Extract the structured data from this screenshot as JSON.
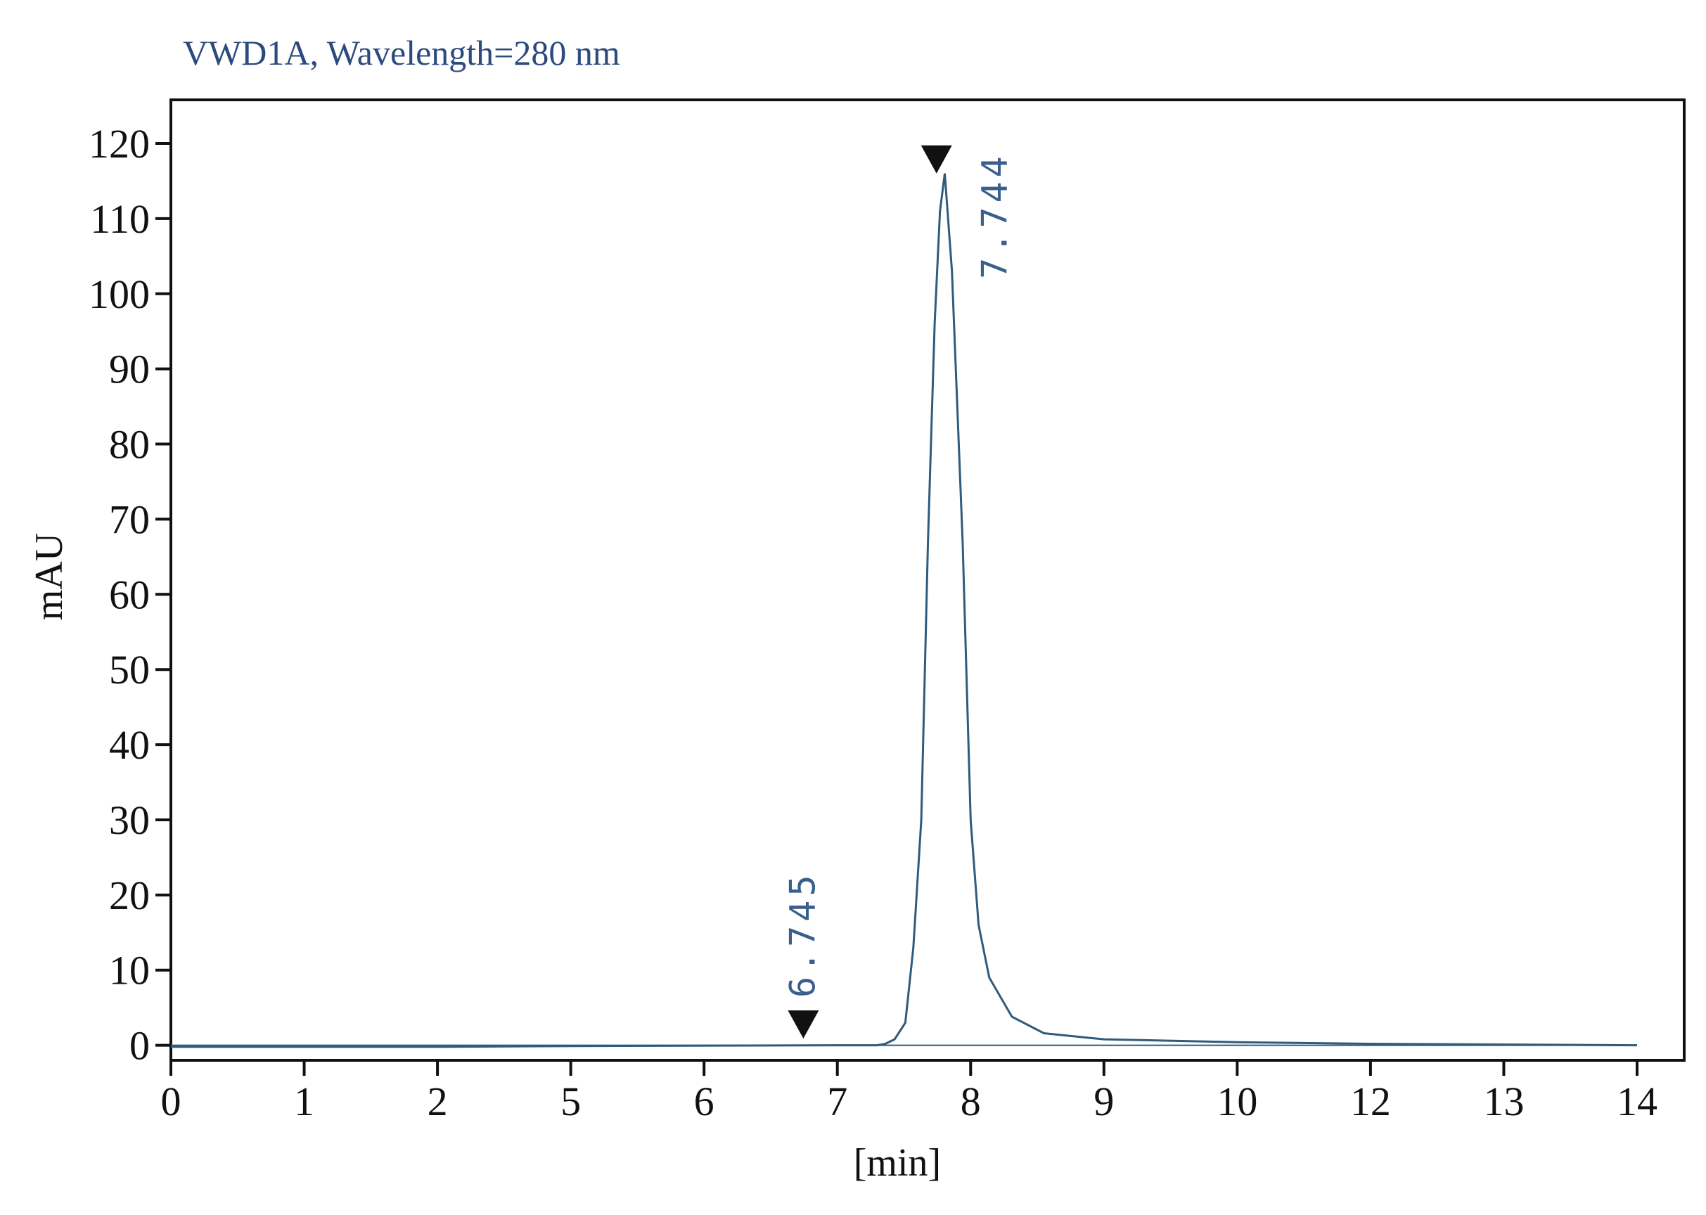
{
  "chart_data": {
    "type": "line",
    "title": "VWD1A, Wavelength=280 nm",
    "x_label": "[min]",
    "y_label": "mAU",
    "x": [
      0,
      2,
      5,
      7,
      7.3,
      7.36,
      7.43,
      7.51,
      7.57,
      7.63,
      7.68,
      7.73,
      7.77,
      7.806,
      7.86,
      7.94,
      8.0,
      8.06,
      8.14,
      8.31,
      8.55,
      8.88,
      9,
      10,
      12,
      14
    ],
    "series": [
      {
        "name": "VWD1A",
        "color": "#2f5b7c",
        "values": [
          -0.2,
          -0.2,
          -0.1,
          0,
          0,
          0.2,
          0.8,
          3,
          13,
          30,
          67,
          96,
          111,
          116,
          103,
          67,
          30,
          16,
          9,
          3.8,
          1.6,
          1,
          0.8,
          0.4,
          0.2,
          0
        ]
      }
    ],
    "annotations": [
      {
        "x": 6.745,
        "y": 0.9
      },
      {
        "x": 7.744,
        "y": 116
      }
    ],
    "xlim": [
      0,
      14.55
    ],
    "xticks": [
      0,
      1,
      2,
      5,
      6,
      7,
      8,
      9,
      10,
      12,
      13,
      14
    ],
    "ylim": [
      -2,
      125.8
    ],
    "yticks": [
      0,
      10,
      20,
      30,
      40,
      50,
      60,
      70,
      80,
      90,
      100,
      110,
      120
    ]
  }
}
